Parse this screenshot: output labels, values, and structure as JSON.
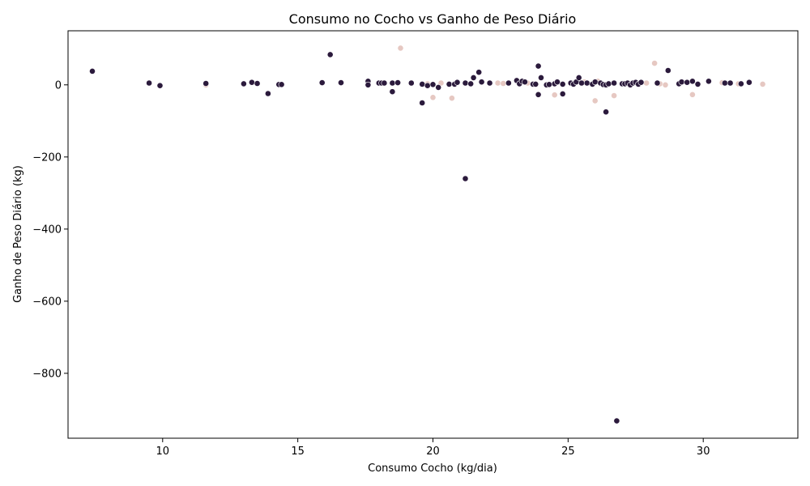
{
  "chart_data": {
    "type": "scatter",
    "title": "Consumo no Cocho vs Ganho de Peso Diário",
    "xlabel": "Consumo Cocho (kg/dia)",
    "ylabel": "Ganho de Peso Diário (kg)",
    "xlim": [
      6.5,
      33.5
    ],
    "ylim": [
      -980,
      150
    ],
    "xticks": [
      10,
      15,
      20,
      25,
      30
    ],
    "yticks": [
      0,
      -200,
      -400,
      -600,
      -800
    ],
    "xtick_labels": [
      "10",
      "15",
      "20",
      "25",
      "30"
    ],
    "ytick_labels": [
      "0",
      "−200",
      "−400",
      "−600",
      "−800"
    ],
    "grid": false,
    "legend": "none",
    "colors": {
      "dark_points": "#2b1a3c",
      "light_points": "#e6c8c2",
      "axes": "#000000"
    },
    "series": [
      {
        "points": [
          [
            7.4,
            38
          ],
          [
            9.5,
            5
          ],
          [
            9.9,
            -2
          ],
          [
            11.6,
            4
          ],
          [
            13.0,
            3
          ],
          [
            13.3,
            7
          ],
          [
            13.5,
            4
          ],
          [
            13.9,
            -24
          ],
          [
            14.3,
            1
          ],
          [
            14.4,
            1
          ],
          [
            15.9,
            6
          ],
          [
            16.2,
            84
          ],
          [
            16.6,
            6
          ],
          [
            17.6,
            10
          ],
          [
            17.6,
            0
          ],
          [
            18.0,
            5
          ],
          [
            18.1,
            5
          ],
          [
            18.2,
            5
          ],
          [
            18.5,
            -19
          ],
          [
            18.5,
            5
          ],
          [
            18.7,
            6
          ],
          [
            19.2,
            5
          ],
          [
            19.6,
            2
          ],
          [
            19.6,
            -50
          ],
          [
            19.8,
            -2
          ],
          [
            20.0,
            1
          ],
          [
            20.2,
            -7
          ],
          [
            20.6,
            2
          ],
          [
            20.8,
            2
          ],
          [
            20.9,
            7
          ],
          [
            21.2,
            5
          ],
          [
            21.2,
            -260
          ],
          [
            21.4,
            3
          ],
          [
            21.5,
            20
          ],
          [
            21.7,
            35
          ],
          [
            21.8,
            8
          ],
          [
            22.1,
            5
          ],
          [
            22.8,
            5
          ],
          [
            23.1,
            12
          ],
          [
            23.2,
            3
          ],
          [
            23.3,
            10
          ],
          [
            23.4,
            8
          ],
          [
            23.7,
            2
          ],
          [
            23.8,
            2
          ],
          [
            23.9,
            -27
          ],
          [
            23.9,
            52
          ],
          [
            24.0,
            20
          ],
          [
            24.2,
            0
          ],
          [
            24.3,
            1
          ],
          [
            24.5,
            3
          ],
          [
            24.6,
            8
          ],
          [
            24.8,
            2
          ],
          [
            24.8,
            -25
          ],
          [
            25.1,
            5
          ],
          [
            25.2,
            2
          ],
          [
            25.3,
            8
          ],
          [
            25.4,
            20
          ],
          [
            25.5,
            5
          ],
          [
            25.7,
            5
          ],
          [
            25.9,
            2
          ],
          [
            26.0,
            8
          ],
          [
            26.2,
            5
          ],
          [
            26.3,
            1
          ],
          [
            26.4,
            0
          ],
          [
            26.4,
            -75
          ],
          [
            26.5,
            3
          ],
          [
            26.7,
            5
          ],
          [
            26.8,
            -932
          ],
          [
            27.0,
            3
          ],
          [
            27.1,
            3
          ],
          [
            27.2,
            5
          ],
          [
            27.3,
            0
          ],
          [
            27.4,
            5
          ],
          [
            27.5,
            7
          ],
          [
            27.6,
            2
          ],
          [
            27.7,
            7
          ],
          [
            28.3,
            5
          ],
          [
            28.7,
            40
          ],
          [
            29.1,
            3
          ],
          [
            29.2,
            8
          ],
          [
            29.4,
            7
          ],
          [
            29.6,
            10
          ],
          [
            29.8,
            2
          ],
          [
            30.2,
            10
          ],
          [
            30.8,
            5
          ],
          [
            31.0,
            5
          ],
          [
            31.4,
            3
          ],
          [
            31.7,
            7
          ]
        ]
      },
      {
        "points": [
          [
            11.6,
            0
          ],
          [
            14.4,
            2
          ],
          [
            18.5,
            6
          ],
          [
            18.8,
            102
          ],
          [
            19.8,
            3
          ],
          [
            20.0,
            -35
          ],
          [
            20.3,
            5
          ],
          [
            20.7,
            -37
          ],
          [
            22.4,
            5
          ],
          [
            22.6,
            4
          ],
          [
            23.5,
            5
          ],
          [
            24.5,
            -28
          ],
          [
            25.6,
            8
          ],
          [
            26.0,
            -44
          ],
          [
            26.1,
            10
          ],
          [
            26.7,
            -30
          ],
          [
            27.9,
            5
          ],
          [
            28.2,
            60
          ],
          [
            28.4,
            3
          ],
          [
            28.6,
            0
          ],
          [
            29.6,
            -27
          ],
          [
            30.7,
            6
          ],
          [
            31.3,
            3
          ],
          [
            32.2,
            2
          ]
        ]
      }
    ]
  }
}
